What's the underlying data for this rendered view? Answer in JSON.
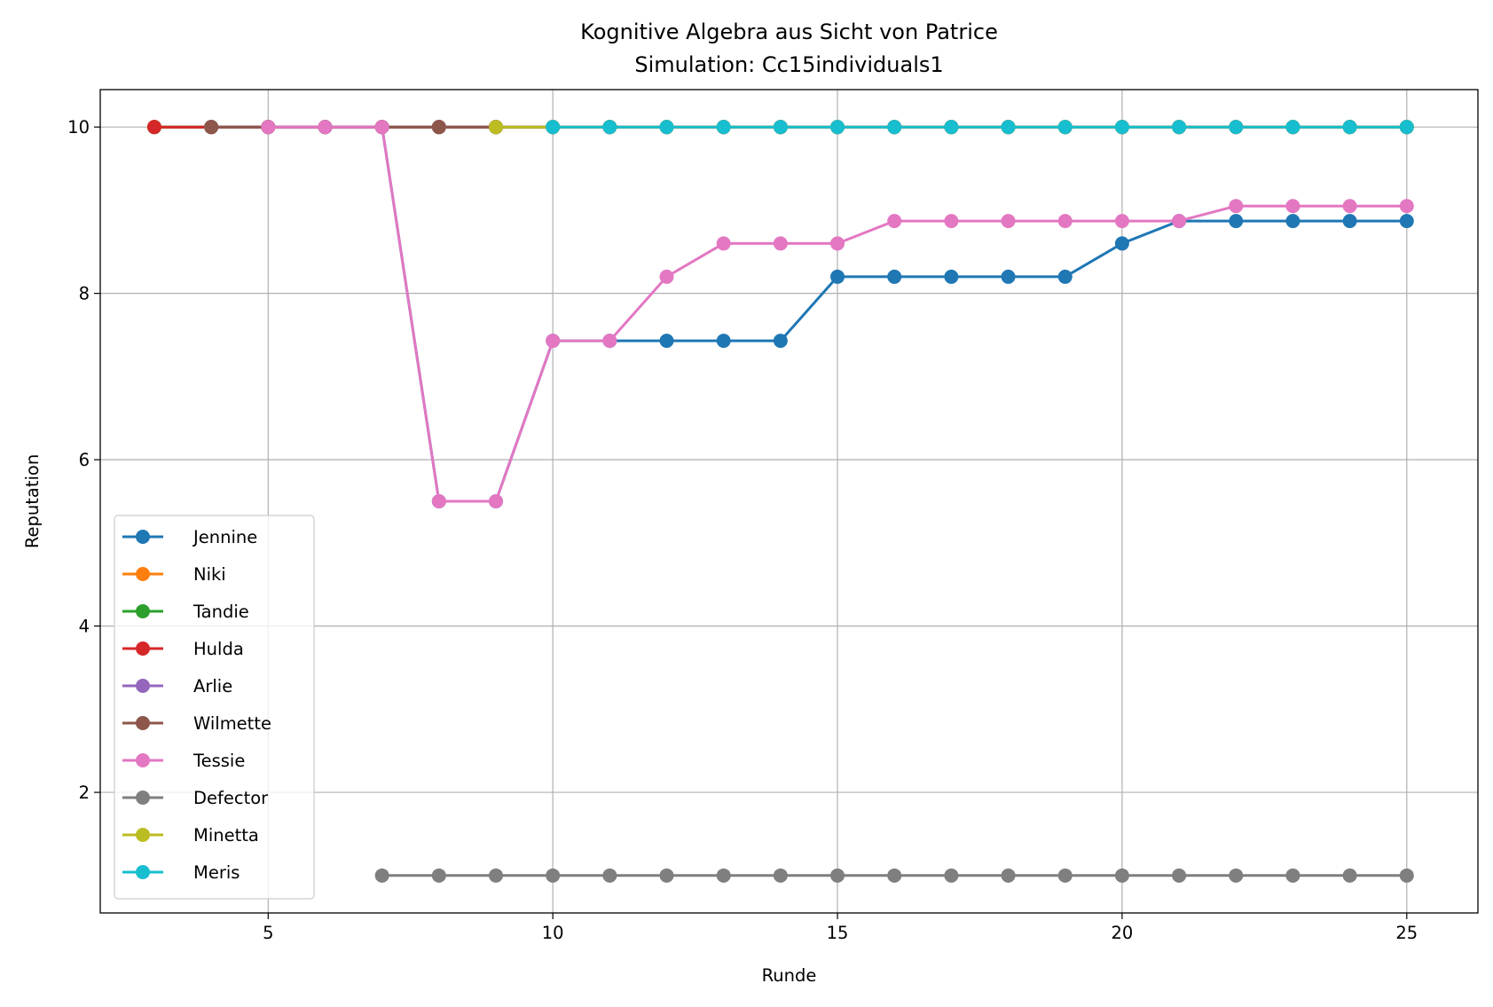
{
  "chart_data": {
    "type": "line",
    "title": "Kognitive Algebra aus Sicht von Patrice",
    "subtitle": "Simulation: Cc15individuals1",
    "xlabel": "Runde",
    "ylabel": "Reputation",
    "xlim": [
      2.05,
      26.25
    ],
    "ylim": [
      0.55,
      10.45
    ],
    "xticks": [
      5,
      10,
      15,
      20,
      25
    ],
    "yticks": [
      2,
      4,
      6,
      8,
      10
    ],
    "grid": true,
    "legend_position": "lower left",
    "series": [
      {
        "name": "Jennine",
        "color": "#1f77b4",
        "x": [
          3,
          4,
          5,
          6,
          7,
          8,
          9,
          10,
          11,
          12,
          13,
          14,
          15,
          16,
          17,
          18,
          19,
          20,
          21,
          22,
          23,
          24,
          25
        ],
        "y": [
          10,
          10,
          10,
          10,
          10,
          5.5,
          5.5,
          7.43,
          7.43,
          7.43,
          7.43,
          7.43,
          8.2,
          8.2,
          8.2,
          8.2,
          8.2,
          8.6,
          8.87,
          8.87,
          8.87,
          8.87,
          8.87
        ]
      },
      {
        "name": "Niki",
        "color": "#ff7f0e",
        "x": [
          3,
          4,
          5,
          6,
          7,
          8,
          9,
          10,
          11,
          12,
          13,
          14,
          15,
          16,
          17,
          18,
          19,
          20,
          21,
          22,
          23,
          24,
          25
        ],
        "y": [
          10,
          10,
          10,
          10,
          10,
          10,
          10,
          10,
          10,
          10,
          10,
          10,
          10,
          10,
          10,
          10,
          10,
          10,
          10,
          10,
          10,
          10,
          10
        ]
      },
      {
        "name": "Tandie",
        "color": "#2ca02c",
        "x": [
          3,
          4,
          5,
          6,
          7,
          8,
          9,
          10,
          11,
          12,
          13,
          14,
          15,
          16,
          17,
          18,
          19,
          20,
          21,
          22,
          23,
          24,
          25
        ],
        "y": [
          10,
          10,
          10,
          10,
          10,
          10,
          10,
          10,
          10,
          10,
          10,
          10,
          10,
          10,
          10,
          10,
          10,
          10,
          10,
          10,
          10,
          10,
          10
        ]
      },
      {
        "name": "Hulda",
        "color": "#d62728",
        "x": [
          3,
          4,
          5,
          6,
          7,
          8,
          9,
          10,
          11,
          12,
          13,
          14,
          15,
          16,
          17,
          18,
          19,
          20,
          21,
          22,
          23,
          24,
          25
        ],
        "y": [
          10,
          10,
          10,
          10,
          10,
          10,
          10,
          10,
          10,
          10,
          10,
          10,
          10,
          10,
          10,
          10,
          10,
          10,
          10,
          10,
          10,
          10,
          10
        ]
      },
      {
        "name": "Arlie",
        "color": "#9467bd",
        "x": [
          4,
          5,
          6,
          7,
          8,
          9,
          10,
          11,
          12,
          13,
          14,
          15,
          16,
          17,
          18,
          19,
          20,
          21,
          22,
          23,
          24,
          25
        ],
        "y": [
          10,
          10,
          10,
          10,
          10,
          10,
          10,
          10,
          10,
          10,
          10,
          10,
          10,
          10,
          10,
          10,
          10,
          10,
          10,
          10,
          10,
          10
        ]
      },
      {
        "name": "Wilmette",
        "color": "#8c564b",
        "x": [
          4,
          5,
          6,
          7,
          8,
          9,
          10,
          11,
          12,
          13,
          14,
          15,
          16,
          17,
          18,
          19,
          20,
          21,
          22,
          23,
          24,
          25
        ],
        "y": [
          10,
          10,
          10,
          10,
          10,
          10,
          10,
          10,
          10,
          10,
          10,
          10,
          10,
          10,
          10,
          10,
          10,
          10,
          10,
          10,
          10,
          10
        ]
      },
      {
        "name": "Tessie",
        "color": "#e377c2",
        "x": [
          5,
          6,
          7,
          8,
          9,
          10,
          11,
          12,
          13,
          14,
          15,
          16,
          17,
          18,
          19,
          20,
          21,
          22,
          23,
          24,
          25
        ],
        "y": [
          10,
          10,
          10,
          5.5,
          5.5,
          7.43,
          7.43,
          8.2,
          8.6,
          8.6,
          8.6,
          8.87,
          8.87,
          8.87,
          8.87,
          8.87,
          8.87,
          9.05,
          9.05,
          9.05,
          9.05
        ]
      },
      {
        "name": "Defector",
        "color": "#7f7f7f",
        "x": [
          7,
          8,
          9,
          10,
          11,
          12,
          13,
          14,
          15,
          16,
          17,
          18,
          19,
          20,
          21,
          22,
          23,
          24,
          25
        ],
        "y": [
          1,
          1,
          1,
          1,
          1,
          1,
          1,
          1,
          1,
          1,
          1,
          1,
          1,
          1,
          1,
          1,
          1,
          1,
          1
        ]
      },
      {
        "name": "Minetta",
        "color": "#bcbd22",
        "x": [
          9,
          10,
          11,
          12,
          13,
          14,
          15,
          16,
          17,
          18,
          19,
          20,
          21,
          22,
          23,
          24,
          25
        ],
        "y": [
          10,
          10,
          10,
          10,
          10,
          10,
          10,
          10,
          10,
          10,
          10,
          10,
          10,
          10,
          10,
          10,
          10
        ]
      },
      {
        "name": "Meris",
        "color": "#17becf",
        "x": [
          10,
          11,
          12,
          13,
          14,
          15,
          16,
          17,
          18,
          19,
          20,
          21,
          22,
          23,
          24,
          25
        ],
        "y": [
          10,
          10,
          10,
          10,
          10,
          10,
          10,
          10,
          10,
          10,
          10,
          10,
          10,
          10,
          10,
          10
        ]
      }
    ]
  }
}
